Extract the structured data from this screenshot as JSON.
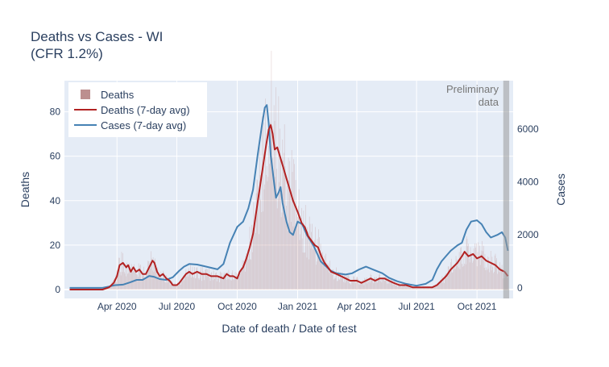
{
  "chart_data": {
    "type": "bar+line",
    "title_line1": "Deaths vs Cases - WI",
    "title_line2": "(CFR 1.2%)",
    "xlabel": "Date of death / Date of test",
    "ylabel_left": "Deaths",
    "ylabel_right": "Cases",
    "x_range": [
      "2020-01-12",
      "2021-11-25"
    ],
    "y_left_range": [
      -4,
      94
    ],
    "y_right_range": [
      -400,
      7820
    ],
    "y_left_ticks": [
      0,
      20,
      40,
      60,
      80
    ],
    "y_right_ticks": [
      0,
      2000,
      4000,
      6000
    ],
    "y_right_tick_labels": [
      "0",
      "2000",
      "4000",
      "6000"
    ],
    "x_ticks": [
      {
        "date": "2020-04-01",
        "label": "Apr 2020"
      },
      {
        "date": "2020-07-01",
        "label": "Jul 2020"
      },
      {
        "date": "2020-10-01",
        "label": "Oct 2020"
      },
      {
        "date": "2021-01-01",
        "label": "Jan 2021"
      },
      {
        "date": "2021-04-01",
        "label": "Apr 2021"
      },
      {
        "date": "2021-07-01",
        "label": "Jul 2021"
      },
      {
        "date": "2021-10-01",
        "label": "Oct 2021"
      }
    ],
    "preliminary": {
      "start": "2021-11-10",
      "end": "2021-11-19",
      "label_line1": "Preliminary",
      "label_line2": "data"
    },
    "legend": {
      "position": "top-left",
      "items": [
        {
          "label": "Deaths",
          "kind": "bar",
          "color": "#bc8f8f"
        },
        {
          "label": "Deaths (7-day avg)",
          "kind": "line",
          "color": "#b22222"
        },
        {
          "label": "Cases (7-day avg)",
          "kind": "line",
          "color": "#4682b4"
        }
      ]
    },
    "series": [
      {
        "name": "Deaths (7-day avg)",
        "axis": "left",
        "color": "#b22222",
        "points": [
          [
            "2020-01-20",
            0
          ],
          [
            "2020-03-10",
            0
          ],
          [
            "2020-03-20",
            1
          ],
          [
            "2020-03-27",
            3
          ],
          [
            "2020-04-01",
            6
          ],
          [
            "2020-04-05",
            11
          ],
          [
            "2020-04-10",
            12
          ],
          [
            "2020-04-15",
            10
          ],
          [
            "2020-04-18",
            11
          ],
          [
            "2020-04-22",
            8
          ],
          [
            "2020-04-26",
            10
          ],
          [
            "2020-04-30",
            8
          ],
          [
            "2020-05-05",
            9
          ],
          [
            "2020-05-10",
            7
          ],
          [
            "2020-05-15",
            7
          ],
          [
            "2020-05-20",
            10
          ],
          [
            "2020-05-25",
            13
          ],
          [
            "2020-05-28",
            12
          ],
          [
            "2020-06-01",
            8
          ],
          [
            "2020-06-05",
            6
          ],
          [
            "2020-06-10",
            7
          ],
          [
            "2020-06-15",
            5
          ],
          [
            "2020-06-20",
            4
          ],
          [
            "2020-06-25",
            2
          ],
          [
            "2020-07-01",
            2
          ],
          [
            "2020-07-05",
            3
          ],
          [
            "2020-07-10",
            5
          ],
          [
            "2020-07-15",
            7
          ],
          [
            "2020-07-20",
            8
          ],
          [
            "2020-07-25",
            7
          ],
          [
            "2020-08-01",
            8
          ],
          [
            "2020-08-08",
            7
          ],
          [
            "2020-08-15",
            7
          ],
          [
            "2020-08-22",
            6
          ],
          [
            "2020-09-01",
            6
          ],
          [
            "2020-09-10",
            5
          ],
          [
            "2020-09-15",
            7
          ],
          [
            "2020-09-20",
            6
          ],
          [
            "2020-09-25",
            6
          ],
          [
            "2020-10-01",
            5
          ],
          [
            "2020-10-05",
            8
          ],
          [
            "2020-10-10",
            10
          ],
          [
            "2020-10-15",
            14
          ],
          [
            "2020-10-20",
            19
          ],
          [
            "2020-10-25",
            25
          ],
          [
            "2020-10-30",
            35
          ],
          [
            "2020-11-04",
            45
          ],
          [
            "2020-11-09",
            55
          ],
          [
            "2020-11-14",
            65
          ],
          [
            "2020-11-18",
            72
          ],
          [
            "2020-11-21",
            74
          ],
          [
            "2020-11-24",
            70
          ],
          [
            "2020-11-27",
            63
          ],
          [
            "2020-12-01",
            64
          ],
          [
            "2020-12-05",
            60
          ],
          [
            "2020-12-10",
            55
          ],
          [
            "2020-12-15",
            50
          ],
          [
            "2020-12-20",
            45
          ],
          [
            "2020-12-25",
            40
          ],
          [
            "2021-01-01",
            35
          ],
          [
            "2021-01-07",
            30
          ],
          [
            "2021-01-12",
            28
          ],
          [
            "2021-01-17",
            24
          ],
          [
            "2021-01-22",
            22
          ],
          [
            "2021-01-27",
            20
          ],
          [
            "2021-02-01",
            19
          ],
          [
            "2021-02-06",
            15
          ],
          [
            "2021-02-11",
            12
          ],
          [
            "2021-02-16",
            10
          ],
          [
            "2021-02-21",
            8
          ],
          [
            "2021-03-01",
            7
          ],
          [
            "2021-03-08",
            6
          ],
          [
            "2021-03-15",
            5
          ],
          [
            "2021-03-22",
            4
          ],
          [
            "2021-04-01",
            4
          ],
          [
            "2021-04-08",
            3
          ],
          [
            "2021-04-15",
            4
          ],
          [
            "2021-04-22",
            5
          ],
          [
            "2021-04-29",
            4
          ],
          [
            "2021-05-06",
            5
          ],
          [
            "2021-05-13",
            5
          ],
          [
            "2021-05-20",
            4
          ],
          [
            "2021-05-27",
            3
          ],
          [
            "2021-06-05",
            2
          ],
          [
            "2021-06-15",
            2
          ],
          [
            "2021-06-25",
            1
          ],
          [
            "2021-07-05",
            1
          ],
          [
            "2021-07-15",
            1
          ],
          [
            "2021-07-25",
            1
          ],
          [
            "2021-08-01",
            2
          ],
          [
            "2021-08-08",
            4
          ],
          [
            "2021-08-15",
            6
          ],
          [
            "2021-08-22",
            9
          ],
          [
            "2021-09-01",
            12
          ],
          [
            "2021-09-08",
            15
          ],
          [
            "2021-09-12",
            17
          ],
          [
            "2021-09-18",
            15
          ],
          [
            "2021-09-25",
            16
          ],
          [
            "2021-10-01",
            14
          ],
          [
            "2021-10-08",
            15
          ],
          [
            "2021-10-15",
            13
          ],
          [
            "2021-10-22",
            12
          ],
          [
            "2021-10-29",
            11
          ],
          [
            "2021-11-05",
            9
          ],
          [
            "2021-11-12",
            8
          ],
          [
            "2021-11-17",
            6
          ]
        ]
      },
      {
        "name": "Cases (7-day avg)",
        "axis": "right",
        "color": "#4682b4",
        "points": [
          [
            "2020-01-20",
            0
          ],
          [
            "2020-03-10",
            0
          ],
          [
            "2020-03-20",
            50
          ],
          [
            "2020-03-28",
            100
          ],
          [
            "2020-04-10",
            120
          ],
          [
            "2020-04-20",
            200
          ],
          [
            "2020-05-01",
            300
          ],
          [
            "2020-05-10",
            300
          ],
          [
            "2020-05-20",
            450
          ],
          [
            "2020-05-27",
            420
          ],
          [
            "2020-06-05",
            330
          ],
          [
            "2020-06-15",
            300
          ],
          [
            "2020-06-25",
            400
          ],
          [
            "2020-07-05",
            650
          ],
          [
            "2020-07-12",
            800
          ],
          [
            "2020-07-20",
            900
          ],
          [
            "2020-08-01",
            880
          ],
          [
            "2020-08-15",
            800
          ],
          [
            "2020-09-01",
            700
          ],
          [
            "2020-09-10",
            900
          ],
          [
            "2020-09-20",
            1700
          ],
          [
            "2020-10-01",
            2300
          ],
          [
            "2020-10-10",
            2500
          ],
          [
            "2020-10-18",
            3000
          ],
          [
            "2020-10-25",
            3700
          ],
          [
            "2020-11-01",
            5000
          ],
          [
            "2020-11-08",
            6200
          ],
          [
            "2020-11-12",
            6800
          ],
          [
            "2020-11-15",
            6900
          ],
          [
            "2020-11-18",
            6200
          ],
          [
            "2020-11-21",
            5000
          ],
          [
            "2020-11-25",
            4200
          ],
          [
            "2020-11-29",
            3400
          ],
          [
            "2020-12-03",
            3600
          ],
          [
            "2020-12-06",
            3800
          ],
          [
            "2020-12-09",
            3200
          ],
          [
            "2020-12-15",
            2500
          ],
          [
            "2020-12-20",
            2100
          ],
          [
            "2020-12-25",
            2000
          ],
          [
            "2021-01-01",
            2500
          ],
          [
            "2021-01-08",
            2400
          ],
          [
            "2021-01-15",
            2000
          ],
          [
            "2021-01-25",
            1600
          ],
          [
            "2021-02-05",
            1000
          ],
          [
            "2021-02-20",
            650
          ],
          [
            "2021-03-01",
            550
          ],
          [
            "2021-03-15",
            500
          ],
          [
            "2021-03-25",
            550
          ],
          [
            "2021-04-05",
            700
          ],
          [
            "2021-04-15",
            800
          ],
          [
            "2021-04-25",
            700
          ],
          [
            "2021-05-10",
            550
          ],
          [
            "2021-05-20",
            380
          ],
          [
            "2021-06-01",
            250
          ],
          [
            "2021-06-15",
            150
          ],
          [
            "2021-07-01",
            80
          ],
          [
            "2021-07-15",
            150
          ],
          [
            "2021-07-25",
            300
          ],
          [
            "2021-08-01",
            700
          ],
          [
            "2021-08-08",
            1000
          ],
          [
            "2021-08-15",
            1200
          ],
          [
            "2021-08-22",
            1400
          ],
          [
            "2021-09-01",
            1600
          ],
          [
            "2021-09-08",
            1700
          ],
          [
            "2021-09-15",
            2200
          ],
          [
            "2021-09-22",
            2500
          ],
          [
            "2021-10-01",
            2550
          ],
          [
            "2021-10-08",
            2400
          ],
          [
            "2021-10-15",
            2100
          ],
          [
            "2021-10-22",
            1900
          ],
          [
            "2021-11-01",
            2000
          ],
          [
            "2021-11-08",
            2100
          ],
          [
            "2021-11-13",
            1900
          ],
          [
            "2021-11-17",
            1400
          ]
        ]
      }
    ]
  }
}
